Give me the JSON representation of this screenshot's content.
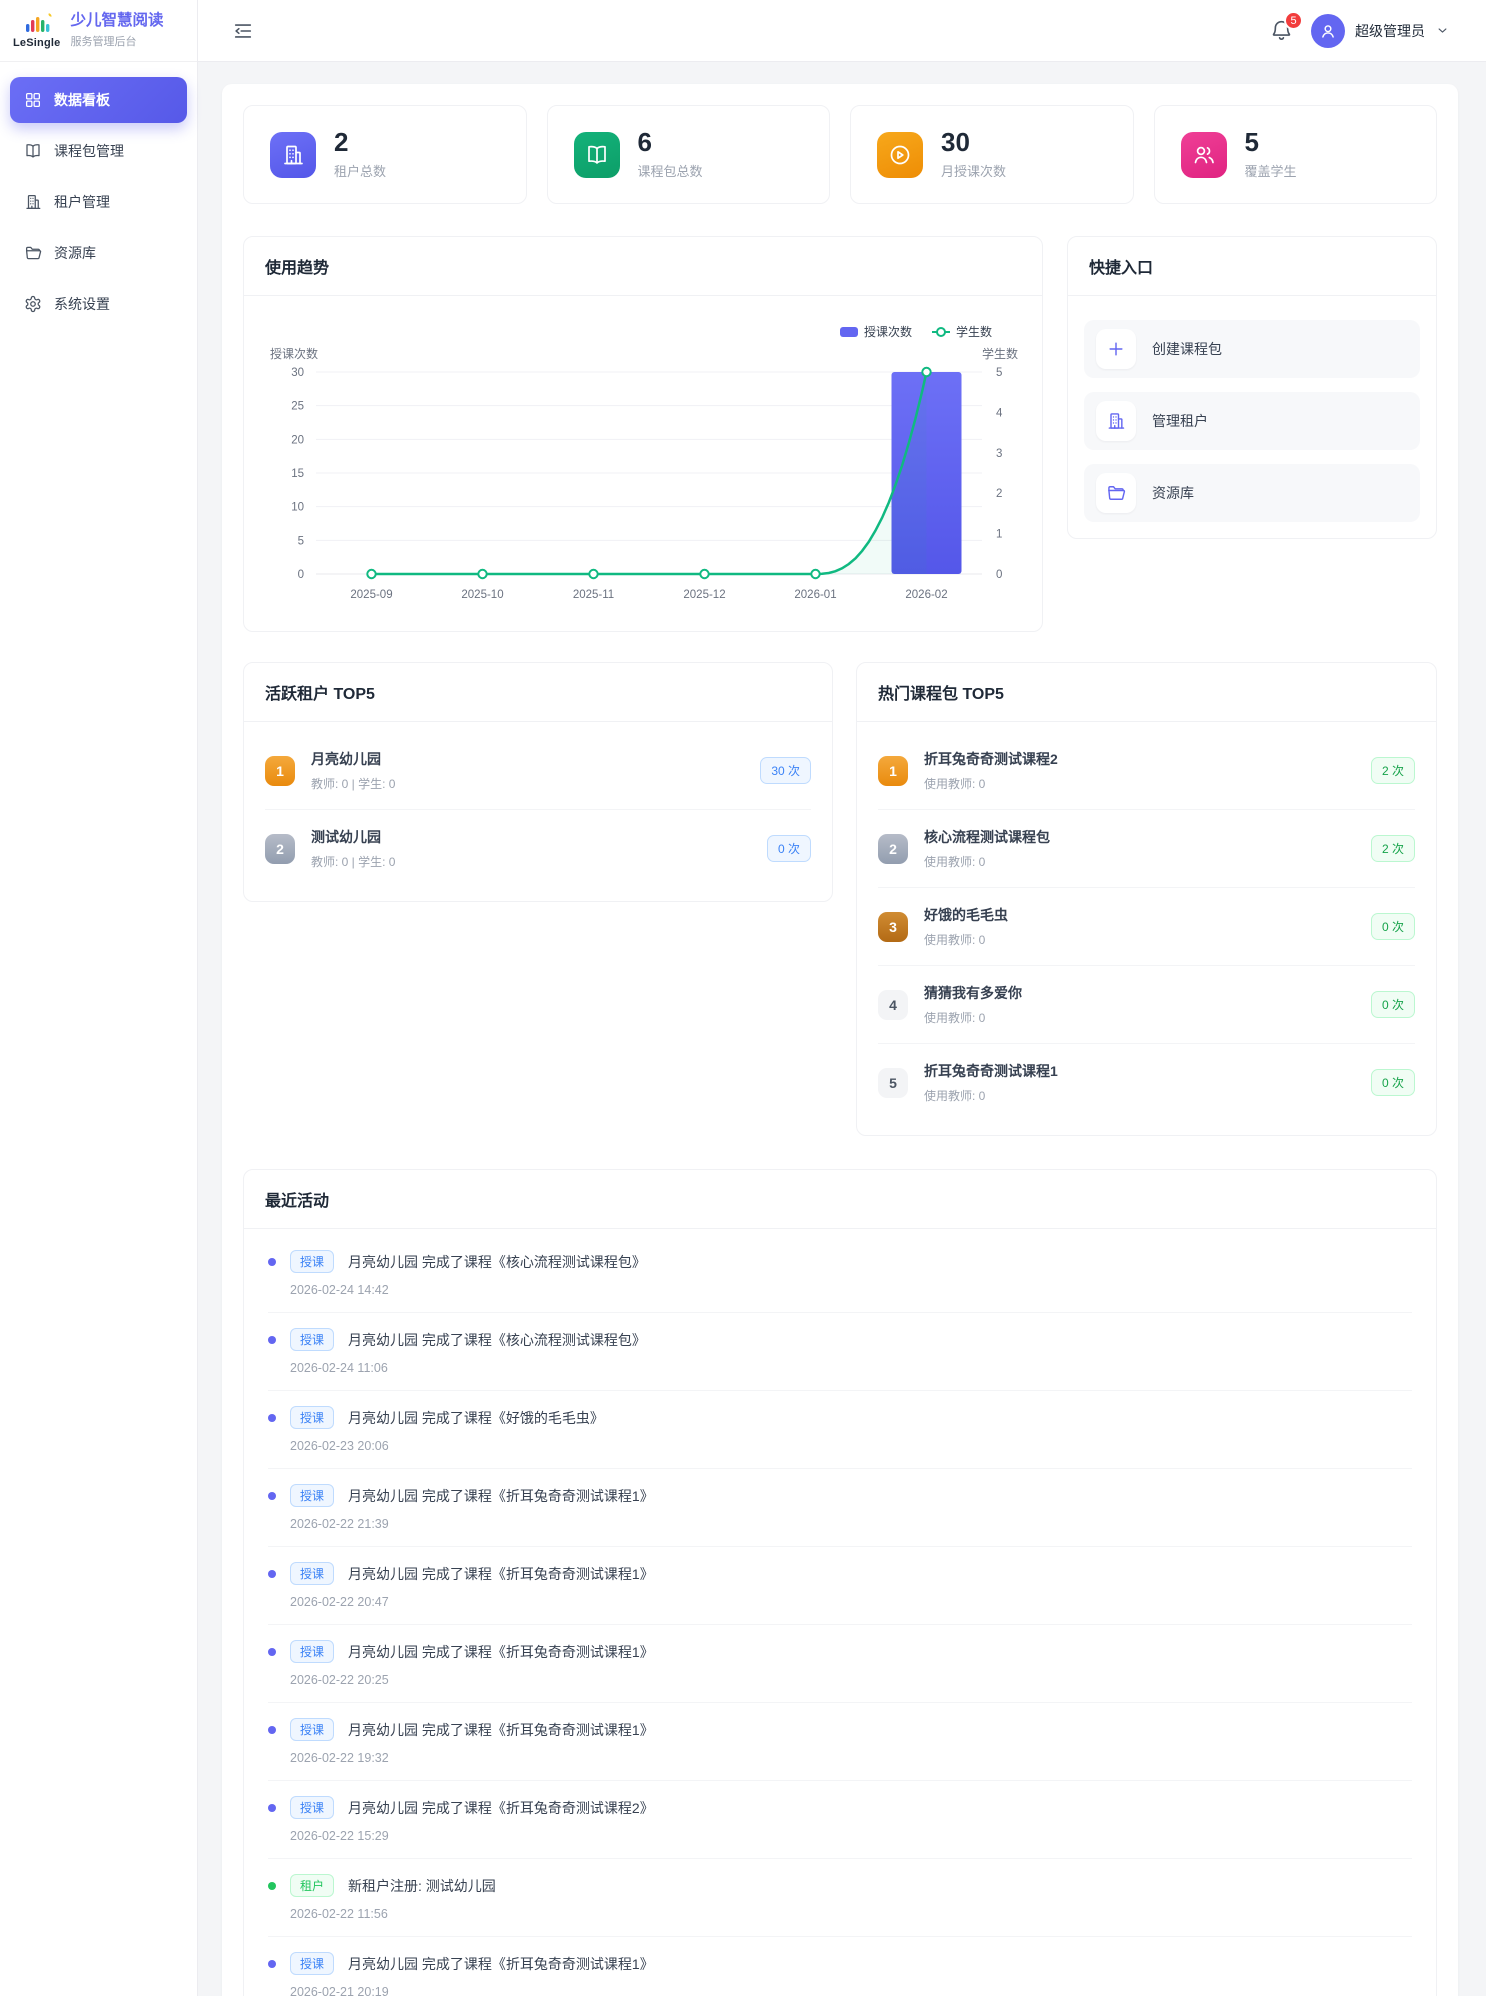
{
  "sidebar": {
    "logo_text": "LeSingle",
    "app_title": "少儿智慧阅读",
    "app_subtitle": "服务管理后台",
    "items": [
      {
        "key": "dashboard",
        "label": "数据看板",
        "icon": "dashboard",
        "active": true
      },
      {
        "key": "course-packages",
        "label": "课程包管理",
        "icon": "book",
        "active": false
      },
      {
        "key": "tenants",
        "label": "租户管理",
        "icon": "building",
        "active": false
      },
      {
        "key": "resources",
        "label": "资源库",
        "icon": "folder",
        "active": false
      },
      {
        "key": "settings",
        "label": "系统设置",
        "icon": "gear",
        "active": false
      }
    ]
  },
  "header": {
    "notification_count": "5",
    "user_name": "超级管理员"
  },
  "stats": [
    {
      "value": "2",
      "label": "租户总数",
      "icon": "building",
      "color": "#6d70f6",
      "color2": "#5457e9"
    },
    {
      "value": "6",
      "label": "课程包总数",
      "icon": "book",
      "color": "#13b27a",
      "color2": "#0d9e68"
    },
    {
      "value": "30",
      "label": "月授课次数",
      "icon": "play",
      "color": "#f7a81b",
      "color2": "#ee8d05"
    },
    {
      "value": "5",
      "label": "覆盖学生",
      "icon": "users",
      "color": "#ef3f96",
      "color2": "#e02381"
    }
  ],
  "chart_card": {
    "title": "使用趋势"
  },
  "chart_data": {
    "type": "bar+line",
    "categories": [
      "2025-09",
      "2025-10",
      "2025-11",
      "2025-12",
      "2026-01",
      "2026-02"
    ],
    "series": [
      {
        "name": "授课次数",
        "type": "bar",
        "axis": "left",
        "color": "#6366f1",
        "values": [
          0,
          0,
          0,
          0,
          0,
          30
        ]
      },
      {
        "name": "学生数",
        "type": "line",
        "axis": "right",
        "color": "#10b981",
        "values": [
          0,
          0,
          0,
          0,
          0,
          5
        ]
      }
    ],
    "left_axis": {
      "title": "授课次数",
      "min": 0,
      "max": 30,
      "step": 5
    },
    "right_axis": {
      "title": "学生数",
      "min": 0,
      "max": 5,
      "step": 1
    },
    "grid": true,
    "legend_position": "top-right"
  },
  "quick_entry": {
    "title": "快捷入口",
    "items": [
      {
        "key": "create-course-package",
        "label": "创建课程包",
        "icon": "plus"
      },
      {
        "key": "manage-tenants",
        "label": "管理租户",
        "icon": "building"
      },
      {
        "key": "resource-library",
        "label": "资源库",
        "icon": "folder"
      }
    ]
  },
  "active_tenants": {
    "title": "活跃租户 TOP5",
    "badge_style": "blue",
    "rows": [
      {
        "rank": "1",
        "name": "月亮幼儿园",
        "meta": "教师: 0 | 学生: 0",
        "count": "30 次"
      },
      {
        "rank": "2",
        "name": "测试幼儿园",
        "meta": "教师: 0 | 学生: 0",
        "count": "0 次"
      }
    ]
  },
  "hot_courses": {
    "title": "热门课程包 TOP5",
    "badge_style": "green",
    "rows": [
      {
        "rank": "1",
        "name": "折耳兔奇奇测试课程2",
        "meta": "使用教师: 0",
        "count": "2 次"
      },
      {
        "rank": "2",
        "name": "核心流程测试课程包",
        "meta": "使用教师: 0",
        "count": "2 次"
      },
      {
        "rank": "3",
        "name": "好饿的毛毛虫",
        "meta": "使用教师: 0",
        "count": "0 次"
      },
      {
        "rank": "4",
        "name": "猜猜我有多爱你",
        "meta": "使用教师: 0",
        "count": "0 次"
      },
      {
        "rank": "5",
        "name": "折耳兔奇奇测试课程1",
        "meta": "使用教师: 0",
        "count": "0 次"
      }
    ]
  },
  "recent_activity": {
    "title": "最近活动",
    "items": [
      {
        "badge": "授课",
        "type": "course",
        "text": "月亮幼儿园 完成了课程《核心流程测试课程包》",
        "time": "2026-02-24 14:42"
      },
      {
        "badge": "授课",
        "type": "course",
        "text": "月亮幼儿园 完成了课程《核心流程测试课程包》",
        "time": "2026-02-24 11:06"
      },
      {
        "badge": "授课",
        "type": "course",
        "text": "月亮幼儿园 完成了课程《好饿的毛毛虫》",
        "time": "2026-02-23 20:06"
      },
      {
        "badge": "授课",
        "type": "course",
        "text": "月亮幼儿园 完成了课程《折耳兔奇奇测试课程1》",
        "time": "2026-02-22 21:39"
      },
      {
        "badge": "授课",
        "type": "course",
        "text": "月亮幼儿园 完成了课程《折耳兔奇奇测试课程1》",
        "time": "2026-02-22 20:47"
      },
      {
        "badge": "授课",
        "type": "course",
        "text": "月亮幼儿园 完成了课程《折耳兔奇奇测试课程1》",
        "time": "2026-02-22 20:25"
      },
      {
        "badge": "授课",
        "type": "course",
        "text": "月亮幼儿园 完成了课程《折耳兔奇奇测试课程1》",
        "time": "2026-02-22 19:32"
      },
      {
        "badge": "授课",
        "type": "course",
        "text": "月亮幼儿园 完成了课程《折耳兔奇奇测试课程2》",
        "time": "2026-02-22 15:29"
      },
      {
        "badge": "租户",
        "type": "tenant",
        "text": "新租户注册: 测试幼儿园",
        "time": "2026-02-22 11:56"
      },
      {
        "badge": "授课",
        "type": "course",
        "text": "月亮幼儿园 完成了课程《折耳兔奇奇测试课程1》",
        "time": "2026-02-21 20:19"
      }
    ]
  }
}
